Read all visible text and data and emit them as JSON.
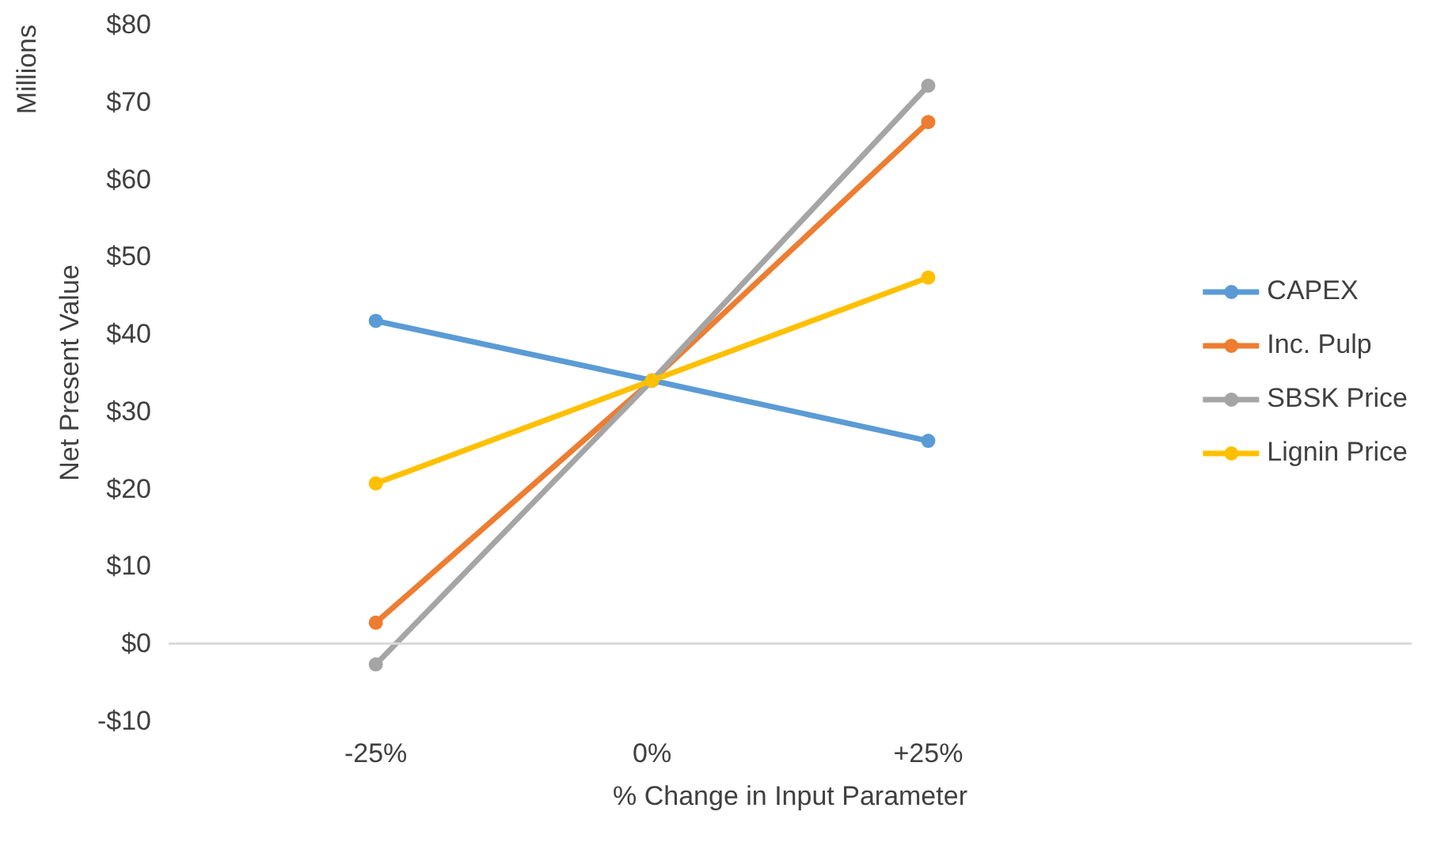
{
  "chart_data": {
    "type": "line",
    "xlabel": "% Change in Input Parameter",
    "ylabel": "Net Present Value",
    "annotations": [
      "Millions"
    ],
    "categories": [
      "-25%",
      "0%",
      "+25%"
    ],
    "series": [
      {
        "name": "CAPEX",
        "color": "#5b9bd5",
        "values": [
          41.7,
          34.0,
          26.2
        ]
      },
      {
        "name": "Inc. Pulp",
        "color": "#ed7d31",
        "values": [
          2.7,
          34.0,
          67.4
        ]
      },
      {
        "name": "SBSK Price",
        "color": "#a5a5a5",
        "values": [
          -2.7,
          34.0,
          72.1
        ]
      },
      {
        "name": "Lignin Price",
        "color": "#ffc000",
        "values": [
          20.7,
          34.0,
          47.3
        ]
      }
    ],
    "ylim": [
      -10,
      80
    ],
    "yticks": [
      {
        "value": -10,
        "label": "-$10"
      },
      {
        "value": 0,
        "label": "$0"
      },
      {
        "value": 10,
        "label": "$10"
      },
      {
        "value": 20,
        "label": "$20"
      },
      {
        "value": 30,
        "label": "$30"
      },
      {
        "value": 40,
        "label": "$40"
      },
      {
        "value": 50,
        "label": "$50"
      },
      {
        "value": 60,
        "label": "$60"
      },
      {
        "value": 70,
        "label": "$70"
      },
      {
        "value": 80,
        "label": "$80"
      }
    ],
    "ref_lines": [
      {
        "axis": "y",
        "value": 0,
        "color": "#d9d9d9"
      }
    ],
    "marker": "circle",
    "line_style": "solid",
    "grid": false,
    "legend": "right"
  }
}
